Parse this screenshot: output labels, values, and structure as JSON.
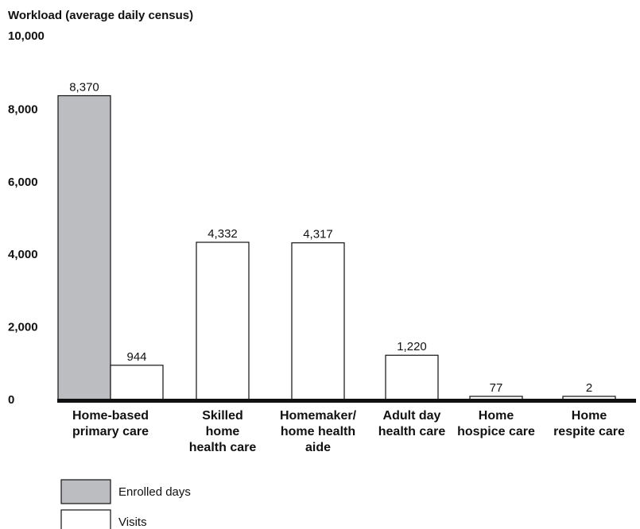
{
  "chart_data": {
    "type": "bar",
    "ylabel": "Workload (average daily census)",
    "ylim": [
      0,
      10000
    ],
    "yticks": [
      {
        "value": 0,
        "label": "0"
      },
      {
        "value": 2000,
        "label": "2,000"
      },
      {
        "value": 4000,
        "label": "4,000"
      },
      {
        "value": 6000,
        "label": "6,000"
      },
      {
        "value": 8000,
        "label": "8,000"
      },
      {
        "value": 10000,
        "label": "10,000"
      }
    ],
    "categories": [
      [
        "Home-based",
        "primary care"
      ],
      [
        "Skilled",
        "home",
        "health care"
      ],
      [
        "Homemaker/",
        "home health",
        "aide"
      ],
      [
        "Adult day",
        "health care"
      ],
      [
        "Home",
        "hospice care"
      ],
      [
        "Home",
        "respite care"
      ]
    ],
    "series": [
      {
        "name": "Enrolled days",
        "color": "#bcbdc0"
      },
      {
        "name": "Visits",
        "color": "#ffffff"
      }
    ],
    "bars": [
      {
        "category": 0,
        "series": 0,
        "value": 8370,
        "label": "8,370"
      },
      {
        "category": 0,
        "series": 1,
        "value": 944,
        "label": "944"
      },
      {
        "category": 1,
        "series": 1,
        "value": 4332,
        "label": "4,332"
      },
      {
        "category": 2,
        "series": 1,
        "value": 4317,
        "label": "4,317"
      },
      {
        "category": 3,
        "series": 1,
        "value": 1220,
        "label": "1,220"
      },
      {
        "category": 4,
        "series": 1,
        "value": 77,
        "label": "77"
      },
      {
        "category": 5,
        "series": 1,
        "value": 2,
        "label": "2"
      }
    ],
    "legend_position": "bottom-left",
    "grid": false
  }
}
